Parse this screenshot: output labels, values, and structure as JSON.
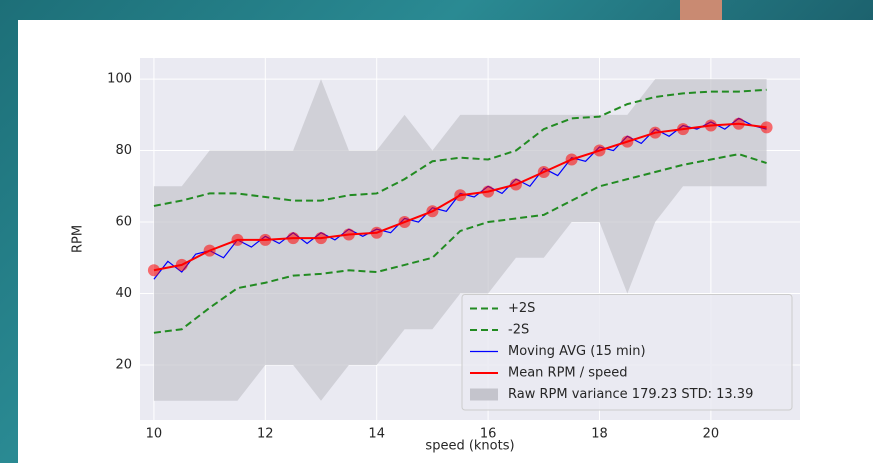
{
  "chart_data": {
    "type": "line",
    "xlabel": "speed (knots)",
    "ylabel": "RPM",
    "xlim": [
      9.75,
      21.6
    ],
    "ylim": [
      4.6,
      105.9
    ],
    "xticks": [
      10,
      12,
      14,
      16,
      18,
      20
    ],
    "yticks": [
      20,
      40,
      60,
      80,
      100
    ],
    "grid": true,
    "legend": "lower right",
    "series": [
      {
        "name": "+2S",
        "color": "#228b22",
        "dashed": true,
        "x": [
          10,
          10.5,
          11,
          11.5,
          12,
          12.5,
          13,
          13.5,
          14,
          14.5,
          15,
          15.5,
          16,
          16.5,
          17,
          17.5,
          18,
          18.5,
          19,
          19.5,
          20,
          20.5,
          21
        ],
        "values": [
          64.5,
          66,
          68,
          68,
          67,
          66,
          66,
          67.5,
          68,
          72,
          77,
          78,
          77.5,
          80,
          86,
          89,
          89.5,
          93,
          95,
          96,
          96.5,
          96.5,
          97
        ]
      },
      {
        "name": "-2S",
        "color": "#228b22",
        "dashed": true,
        "x": [
          10,
          10.5,
          11,
          11.5,
          12,
          12.5,
          13,
          13.5,
          14,
          14.5,
          15,
          15.5,
          16,
          16.5,
          17,
          17.5,
          18,
          18.5,
          19,
          19.5,
          20,
          20.5,
          21
        ],
        "values": [
          29,
          30,
          36,
          41.5,
          43,
          45,
          45.5,
          46.5,
          46,
          48,
          50,
          57.5,
          60,
          61,
          62,
          66,
          70,
          72,
          74,
          76,
          77.5,
          79,
          76.5
        ]
      },
      {
        "name": "Moving AVG (15 min)",
        "color": "#0000ff",
        "x": [
          10,
          10.25,
          10.5,
          10.75,
          11,
          11.25,
          11.5,
          11.75,
          12,
          12.25,
          12.5,
          12.75,
          13,
          13.25,
          13.5,
          13.75,
          14,
          14.25,
          14.5,
          14.75,
          15,
          15.25,
          15.5,
          15.75,
          16,
          16.25,
          16.5,
          16.75,
          17,
          17.25,
          17.5,
          17.75,
          18,
          18.25,
          18.5,
          18.75,
          19,
          19.25,
          19.5,
          19.75,
          20,
          20.25,
          20.5,
          20.75,
          21
        ],
        "values": [
          44,
          49,
          46,
          51,
          52,
          50,
          55,
          53,
          56,
          54,
          57,
          54,
          57,
          55,
          58,
          56,
          58,
          57,
          61,
          60,
          64,
          63,
          68,
          67,
          70,
          68,
          72,
          70,
          75,
          73,
          78,
          77,
          81,
          80,
          84,
          82,
          86,
          84,
          87,
          86,
          88,
          86,
          89,
          87,
          86
        ]
      },
      {
        "name": "Mean RPM / speed",
        "color": "#ff0000",
        "markers": true,
        "x": [
          10,
          10.5,
          11,
          11.5,
          12,
          12.5,
          13,
          13.5,
          14,
          14.5,
          15,
          15.5,
          16,
          16.5,
          17,
          17.5,
          18,
          18.5,
          19,
          19.5,
          20,
          20.5,
          21
        ],
        "values": [
          46.5,
          48,
          52,
          55,
          55,
          55.5,
          55.5,
          56.5,
          57,
          60,
          63,
          67.5,
          68.5,
          70.5,
          74,
          77.5,
          80,
          82.5,
          85,
          86,
          87,
          87.5,
          86.5
        ]
      }
    ],
    "band": {
      "name": "Raw RPM variance  179.23 STD: 13.39",
      "color": "#c4c4cc",
      "x": [
        10,
        10.5,
        11,
        11.5,
        12,
        12.5,
        13,
        13.5,
        14,
        14.5,
        15,
        15.5,
        16,
        16.5,
        17,
        17.5,
        18,
        18.5,
        19,
        19.5,
        20,
        20.5,
        21
      ],
      "lower": [
        10,
        10,
        10,
        10,
        20,
        20,
        10,
        20,
        20,
        30,
        30,
        40,
        40,
        50,
        50,
        60,
        60,
        40,
        60,
        70,
        70,
        70,
        70
      ],
      "upper": [
        70,
        70,
        80,
        80,
        80,
        80,
        100,
        80,
        80,
        90,
        80,
        90,
        90,
        90,
        90,
        90,
        90,
        90,
        100,
        100,
        100,
        100,
        100
      ]
    }
  }
}
